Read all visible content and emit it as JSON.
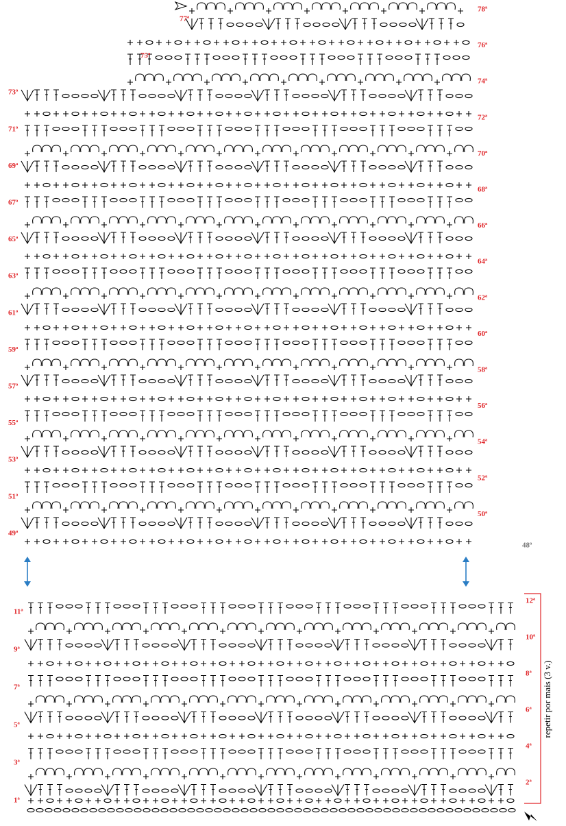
{
  "top_chart": {
    "right_labels": [
      "78ª",
      "76ª",
      "74ª",
      "72ª",
      "70ª",
      "68ª",
      "66ª",
      "64ª",
      "62ª",
      "60ª",
      "58ª",
      "56ª",
      "54ª",
      "52ª",
      "50ª"
    ],
    "left_labels": [
      "77ª",
      "75ª",
      "73ª",
      "71ª",
      "69ª",
      "67ª",
      "65ª",
      "63ª",
      "61ª",
      "59ª",
      "57ª",
      "55ª",
      "53ª",
      "51ª",
      "49ª"
    ],
    "base_label": "48ª"
  },
  "bottom_chart": {
    "right_labels": [
      "12ª",
      "10ª",
      "8ª",
      "6ª",
      "4ª",
      "2ª"
    ],
    "left_labels": [
      "11ª",
      "9ª",
      "7ª",
      "5ª",
      "3ª",
      "1ª"
    ],
    "side_note": "repetir por mais (3 v.)"
  }
}
